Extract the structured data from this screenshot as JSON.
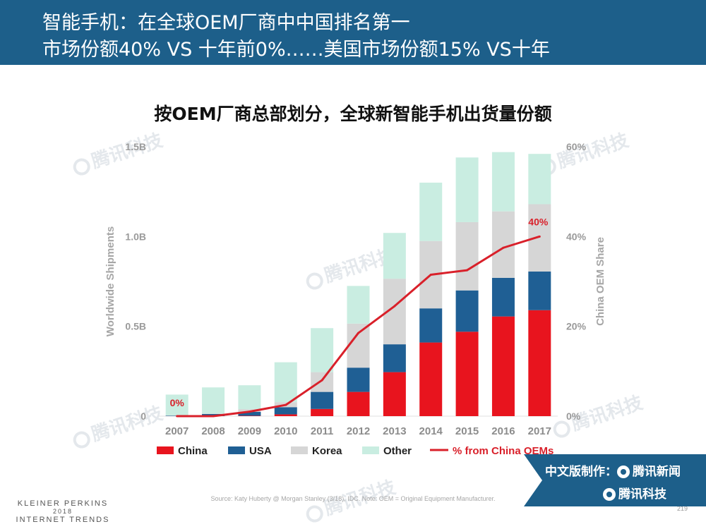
{
  "header": {
    "line1": "智能手机：在全球OEM厂商中中国排名第一",
    "line2": "市场份额40% VS 十年前0%……美国市场份额15% VS十年"
  },
  "watermark": "腾讯科技",
  "chart_data": {
    "type": "bar",
    "stacked": true,
    "title": "按OEM厂商总部划分，全球新智能手机出货量份额",
    "categories": [
      "2007",
      "2008",
      "2009",
      "2010",
      "2011",
      "2012",
      "2013",
      "2014",
      "2015",
      "2016",
      "2017"
    ],
    "series": [
      {
        "name": "China",
        "color": "#e8141e",
        "values": [
          0,
          0,
          0.002,
          0.01,
          0.04,
          0.135,
          0.245,
          0.41,
          0.47,
          0.555,
          0.59
        ]
      },
      {
        "name": "USA",
        "color": "#1f5f94",
        "values": [
          0.003,
          0.012,
          0.022,
          0.04,
          0.095,
          0.135,
          0.155,
          0.19,
          0.23,
          0.215,
          0.215
        ]
      },
      {
        "name": "Korea",
        "color": "#d6d6d6",
        "values": [
          0.001,
          0.002,
          0.015,
          0.028,
          0.11,
          0.245,
          0.365,
          0.375,
          0.38,
          0.37,
          0.375
        ]
      },
      {
        "name": "Other",
        "color": "#c9ede1",
        "values": [
          0.116,
          0.146,
          0.133,
          0.222,
          0.245,
          0.21,
          0.255,
          0.325,
          0.36,
          0.33,
          0.28
        ]
      }
    ],
    "line_series": {
      "name": "% from China OEMs",
      "color": "#d9202a",
      "values": [
        0,
        0,
        0.01,
        0.025,
        0.08,
        0.185,
        0.245,
        0.315,
        0.325,
        0.375,
        0.4
      ]
    },
    "y_left": {
      "label": "Worldwide Shipments",
      "ticks": [
        "0",
        "0.5B",
        "1.0B",
        "1.5B"
      ],
      "range": [
        0,
        1.5
      ]
    },
    "y_right": {
      "label": "China OEM Share",
      "ticks": [
        "0%",
        "20%",
        "40%",
        "60%"
      ],
      "range": [
        0,
        0.6
      ]
    },
    "annotations": [
      {
        "text": "0%",
        "index": 0
      },
      {
        "text": "40%",
        "index": 10
      }
    ],
    "legend": {
      "position": "bottom",
      "entries": [
        "China",
        "USA",
        "Korea",
        "Other",
        "% from China OEMs"
      ]
    }
  },
  "source": "Source: Katy Huberty @ Morgan Stanley (3/18), IDC.  Note: OEM = Original Equipment Manufacturer.",
  "footer": {
    "brand_line1": "KLEINER PERKINS",
    "brand_line2": "2018",
    "brand_line3": "INTERNET TRENDS",
    "page_number": "219"
  },
  "badge": {
    "line1": "中文版制作：",
    "brand1": "腾讯新闻",
    "brand2": "腾讯科技"
  }
}
